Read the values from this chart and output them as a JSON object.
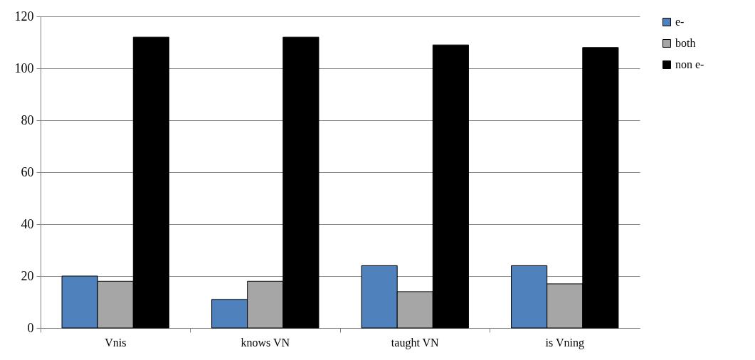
{
  "chart_data": {
    "type": "bar",
    "categories": [
      "Vnis",
      "knows VN",
      "taught VN",
      "is Vning"
    ],
    "series": [
      {
        "name": "e-",
        "color": "#4f81bd",
        "values": [
          20,
          11,
          24,
          24
        ]
      },
      {
        "name": "both",
        "color": "#a6a6a6",
        "values": [
          18,
          18,
          14,
          17
        ]
      },
      {
        "name": "non e-",
        "color": "#000000",
        "values": [
          112,
          112,
          109,
          108
        ]
      }
    ],
    "ylim": [
      0,
      120
    ],
    "yticks": [
      0,
      20,
      40,
      60,
      80,
      100,
      120
    ],
    "grid": "y",
    "legend": "right"
  }
}
